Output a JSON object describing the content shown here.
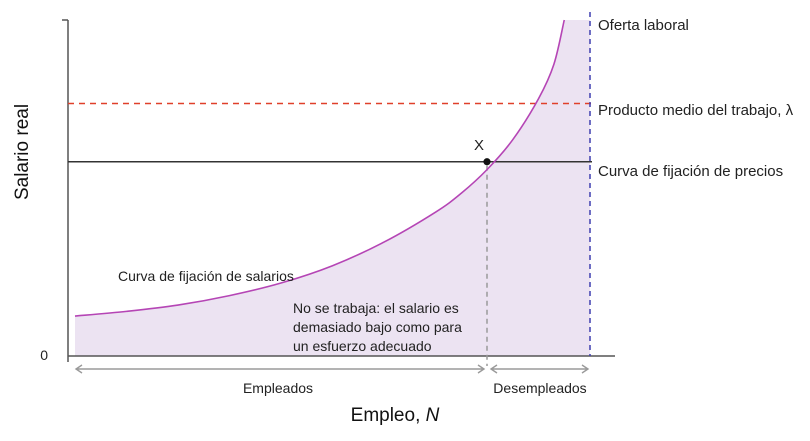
{
  "colors": {
    "wage_curve": "#b545b5",
    "unemployed_fill": "#ece3f2",
    "labour_supply": "#3f3fb0",
    "avg_product": "#e0402a",
    "price_setting": "#333333",
    "axis": "#555555",
    "dashed_guide": "#9a9a9a",
    "arrows": "#9a9a9a"
  },
  "chart_data": {
    "type": "line",
    "ylabel": "Salario real",
    "xlabel_prefix": "Empleo, ",
    "xlabel_var": "N",
    "y_origin_label": "0",
    "xlim": [
      0,
      100
    ],
    "ylim": [
      0,
      100
    ],
    "series": [
      {
        "name": "Curva de fijación de salarios",
        "kind": "curve",
        "x": [
          0,
          10,
          20,
          30,
          40,
          50,
          60,
          70,
          75,
          80,
          85,
          90,
          93,
          95
        ],
        "y": [
          6,
          7.5,
          9.5,
          12.5,
          16.5,
          22,
          29.5,
          39,
          45,
          52.5,
          62,
          75,
          86,
          100
        ]
      },
      {
        "name": "Producto medio del trabajo, λ",
        "kind": "hline",
        "y": 73.5
      },
      {
        "name": "Curva de fijación de precios",
        "kind": "hline",
        "y": 55
      },
      {
        "name": "Oferta laboral",
        "kind": "vline",
        "x": 100
      }
    ],
    "point": {
      "label": "X",
      "x": 80,
      "y": 55
    },
    "annotations": {
      "wage_curve_label": "Curva de fijación de salarios",
      "note_lines": [
        "No se trabaja: el salario es",
        "demasiado bajo como para",
        "un esfuerzo adecuado"
      ],
      "employed": "Empleados",
      "unemployed": "Desempleados"
    }
  }
}
